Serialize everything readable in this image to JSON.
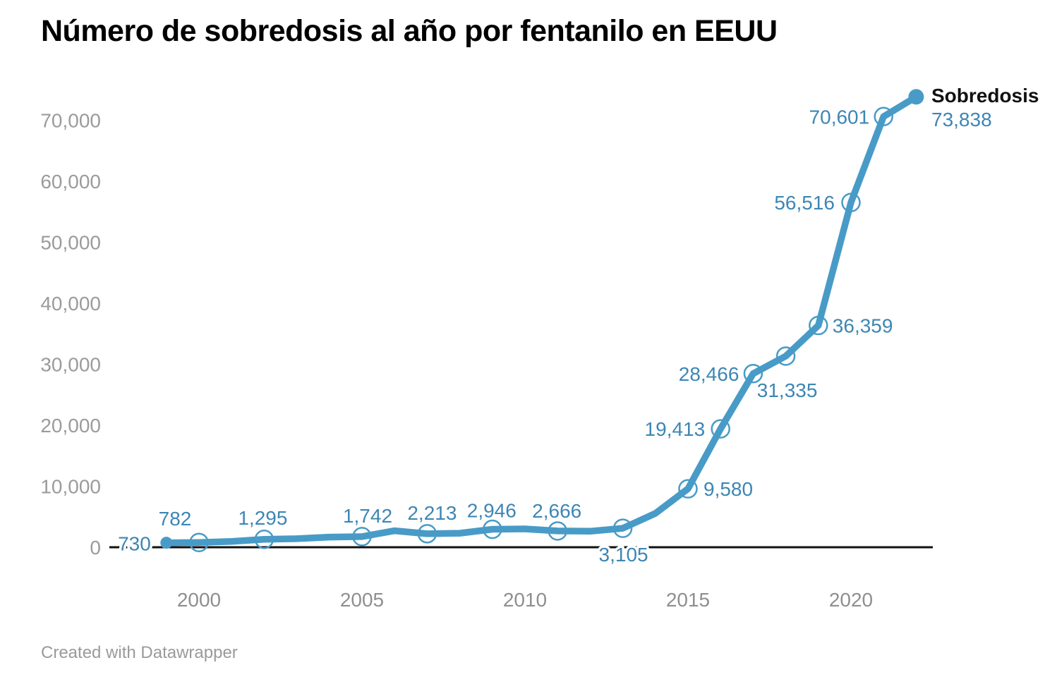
{
  "header": {
    "title": "Número de sobredosis al año por fentanilo en EEUU"
  },
  "legend": {
    "series_name": "Sobredosis",
    "final_value": "73,838"
  },
  "footer": {
    "attribution": "Created with Datawrapper"
  },
  "colors": {
    "line_blue": "#489bc7",
    "label_blue": "#3d86b4",
    "y_axis_gray": "#9b9b9b",
    "x_axis_gray": "#8f8f8f",
    "axis_line_black": "#111111",
    "title_black": "#000000",
    "background": "#ffffff"
  },
  "chart_data": {
    "type": "line",
    "title": "Número de sobredosis al año por fentanilo en EEUU",
    "xlabel": "",
    "ylabel": "",
    "xlim": [
      1999,
      2022
    ],
    "ylim": [
      0,
      74000
    ],
    "grid": false,
    "legend_position": "top-right",
    "x_ticks": [
      {
        "value": 2000,
        "label": "2000"
      },
      {
        "value": 2005,
        "label": "2005"
      },
      {
        "value": 2010,
        "label": "2010"
      },
      {
        "value": 2015,
        "label": "2015"
      },
      {
        "value": 2020,
        "label": "2020"
      }
    ],
    "y_ticks": [
      {
        "value": 0,
        "label": "0"
      },
      {
        "value": 10000,
        "label": "10,000"
      },
      {
        "value": 20000,
        "label": "20,000"
      },
      {
        "value": 30000,
        "label": "30,000"
      },
      {
        "value": 40000,
        "label": "40,000"
      },
      {
        "value": 50000,
        "label": "50,000"
      },
      {
        "value": 60000,
        "label": "60,000"
      },
      {
        "value": 70000,
        "label": "70,000"
      }
    ],
    "series": [
      {
        "name": "Sobredosis",
        "color": "#489bc7",
        "points": [
          {
            "year": 1999,
            "value": 730,
            "label": "730",
            "label_pos": "left",
            "label_dx": -22,
            "label_dy": 1,
            "marker": "dot"
          },
          {
            "year": 2000,
            "value": 782,
            "label": "782",
            "label_pos": "above",
            "label_dx": -34,
            "label_dy": -34,
            "marker": "circle"
          },
          {
            "year": 2001,
            "value": 957,
            "estimated": true
          },
          {
            "year": 2002,
            "value": 1295,
            "label": "1,295",
            "label_pos": "above",
            "label_dx": -2,
            "label_dy": -31,
            "marker": "circle"
          },
          {
            "year": 2003,
            "value": 1400,
            "estimated": true
          },
          {
            "year": 2004,
            "value": 1664,
            "estimated": true
          },
          {
            "year": 2005,
            "value": 1742,
            "label": "1,742",
            "label_pos": "above",
            "label_dx": 8,
            "label_dy": -30,
            "marker": "circle"
          },
          {
            "year": 2006,
            "value": 2707,
            "estimated": true
          },
          {
            "year": 2007,
            "value": 2213,
            "label": "2,213",
            "label_pos": "above",
            "label_dx": 7,
            "label_dy": -30,
            "marker": "circle"
          },
          {
            "year": 2008,
            "value": 2306,
            "estimated": true
          },
          {
            "year": 2009,
            "value": 2946,
            "label": "2,946",
            "label_pos": "above",
            "label_dx": -1,
            "label_dy": -27,
            "marker": "circle"
          },
          {
            "year": 2010,
            "value": 3007,
            "estimated": true
          },
          {
            "year": 2011,
            "value": 2666,
            "label": "2,666",
            "label_pos": "above",
            "label_dx": -1,
            "label_dy": -29,
            "marker": "circle"
          },
          {
            "year": 2012,
            "value": 2628,
            "estimated": true
          },
          {
            "year": 2013,
            "value": 3105,
            "label": "3,105",
            "label_pos": "below",
            "label_dx": 1,
            "label_dy": 37,
            "marker": "circle"
          },
          {
            "year": 2014,
            "value": 5544,
            "estimated": true
          },
          {
            "year": 2015,
            "value": 9580,
            "label": "9,580",
            "label_pos": "right",
            "label_dx": 22,
            "label_dy": 0,
            "marker": "circle"
          },
          {
            "year": 2016,
            "value": 19413,
            "label": "19,413",
            "label_pos": "left",
            "label_dx": -22,
            "label_dy": 0,
            "marker": "circle"
          },
          {
            "year": 2017,
            "value": 28466,
            "label": "28,466",
            "label_pos": "left",
            "label_dx": -20,
            "label_dy": 0,
            "marker": "circle"
          },
          {
            "year": 2018,
            "value": 31335,
            "label": "31,335",
            "label_pos": "below",
            "label_dx": 2,
            "label_dy": 48,
            "marker": "circle"
          },
          {
            "year": 2019,
            "value": 36359,
            "label": "36,359",
            "label_pos": "right",
            "label_dx": 20,
            "label_dy": 0,
            "marker": "circle"
          },
          {
            "year": 2020,
            "value": 56516,
            "label": "56,516",
            "label_pos": "left",
            "label_dx": -23,
            "label_dy": 0,
            "marker": "circle"
          },
          {
            "year": 2021,
            "value": 70601,
            "label": "70,601",
            "label_pos": "left",
            "label_dx": -20,
            "label_dy": 0,
            "marker": "circle"
          },
          {
            "year": 2022,
            "value": 73838,
            "marker": "dot"
          }
        ]
      }
    ]
  }
}
